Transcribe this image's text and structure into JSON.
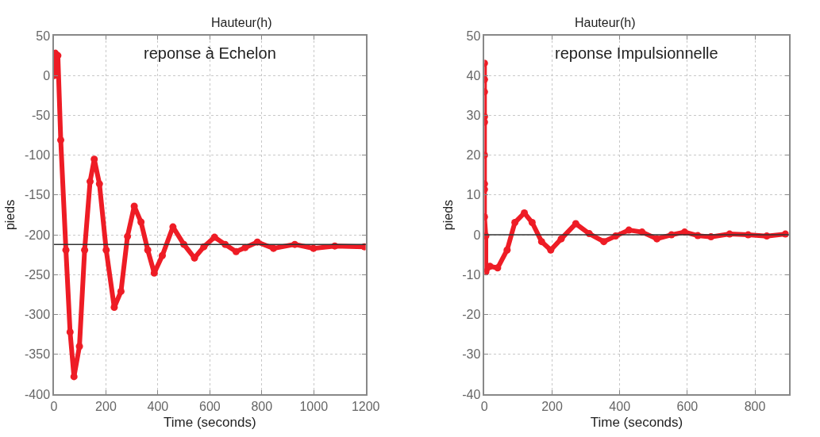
{
  "chart_data": [
    {
      "type": "line",
      "title": "Hauteur(h)",
      "xlabel": "Time (seconds)",
      "ylabel": "pieds",
      "annotations": [
        "reponse à Echelon"
      ],
      "marker": "circle",
      "grid": true,
      "xlim": [
        0,
        1200
      ],
      "xticks": [
        0,
        200,
        400,
        600,
        800,
        1000,
        1200
      ],
      "ylim": [
        -400,
        50
      ],
      "yticks": [
        -400,
        -350,
        -300,
        -250,
        -200,
        -150,
        -100,
        -50,
        0,
        50
      ],
      "ref_lines": [
        {
          "axis": "y",
          "value": -212,
          "color": "#333333"
        }
      ],
      "series": [
        {
          "color": "#ee1c25",
          "x": [
            0,
            5,
            15,
            26,
            46,
            62,
            77,
            98,
            118,
            139,
            155,
            175,
            201,
            232,
            258,
            283,
            309,
            335,
            361,
            386,
            417,
            458,
            500,
            541,
            577,
            618,
            659,
            701,
            736,
            783,
            845,
            927,
            999,
            1081,
            1195
          ],
          "values": [
            0,
            28,
            25,
            -81,
            -219,
            -322,
            -378,
            -340,
            -219,
            -133,
            -105,
            -136,
            -219,
            -291,
            -271,
            -202,
            -164,
            -184,
            -219,
            -248,
            -226,
            -190,
            -212,
            -229,
            -215,
            -203,
            -212,
            -221,
            -216,
            -209,
            -217,
            -212,
            -217,
            -214,
            -215
          ]
        }
      ]
    },
    {
      "type": "line",
      "title": "Hauteur(h)",
      "xlabel": "Time (seconds)",
      "ylabel": "pieds",
      "annotations": [
        "reponse Impulsionnelle"
      ],
      "marker": "circle",
      "grid": true,
      "xlim": [
        0,
        900
      ],
      "xticks": [
        0,
        200,
        400,
        600,
        800
      ],
      "ylim": [
        -40,
        50
      ],
      "yticks": [
        -40,
        -30,
        -20,
        -10,
        0,
        10,
        20,
        30,
        40,
        50
      ],
      "ref_lines": [
        {
          "axis": "y",
          "value": 0,
          "color": "#333333"
        }
      ],
      "series": [
        {
          "color": "#ee1c25",
          "x": [
            0,
            0,
            0,
            0,
            0,
            0,
            0,
            0,
            0,
            4,
            4,
            16,
            39,
            67,
            90,
            118,
            141,
            169,
            196,
            227,
            270,
            310,
            353,
            388,
            427,
            466,
            510,
            553,
            592,
            631,
            670,
            725,
            780,
            835,
            890
          ],
          "values": [
            43.1,
            39,
            35.9,
            29.7,
            28.3,
            20,
            12.8,
            11.4,
            4.5,
            -0.3,
            -9.3,
            -7.9,
            -8.3,
            -3.8,
            3.1,
            5.5,
            3.1,
            -1.7,
            -3.8,
            -1,
            2.8,
            0.3,
            -1.7,
            -0.3,
            1.2,
            0.7,
            -1,
            0,
            0.7,
            -0.2,
            -0.5,
            0.2,
            0,
            -0.3,
            0.2
          ]
        }
      ]
    }
  ]
}
